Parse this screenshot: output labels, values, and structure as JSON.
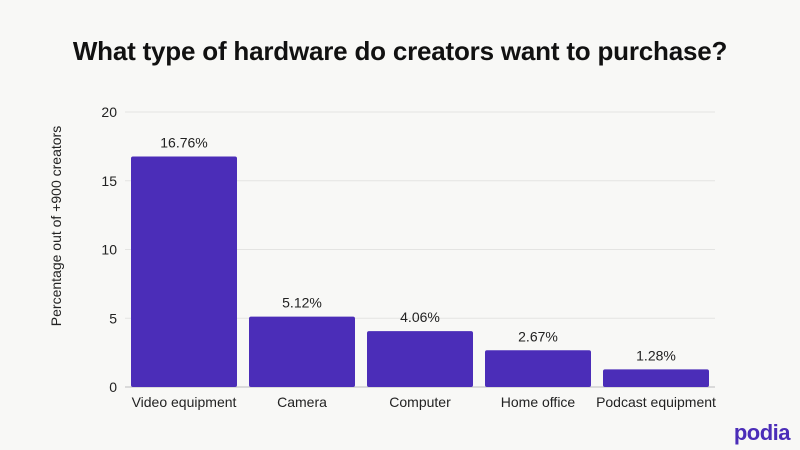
{
  "chart_data": {
    "type": "bar",
    "title": "What type of hardware do creators want to purchase?",
    "xlabel": "",
    "ylabel": "Percentage out of +900 creators",
    "categories": [
      "Video equipment",
      "Camera",
      "Computer",
      "Home office",
      "Podcast equipment"
    ],
    "values": [
      16.76,
      5.12,
      4.06,
      2.67,
      1.28
    ],
    "data_labels": [
      "16.76%",
      "5.12%",
      "4.06%",
      "2.67%",
      "1.28%"
    ],
    "ylim": [
      0,
      20
    ],
    "yticks": [
      0,
      5,
      10,
      15,
      20
    ],
    "grid": true,
    "bar_color": "#4b2db8"
  },
  "brand": {
    "logo_text": "podia",
    "color": "#4b2db8"
  }
}
